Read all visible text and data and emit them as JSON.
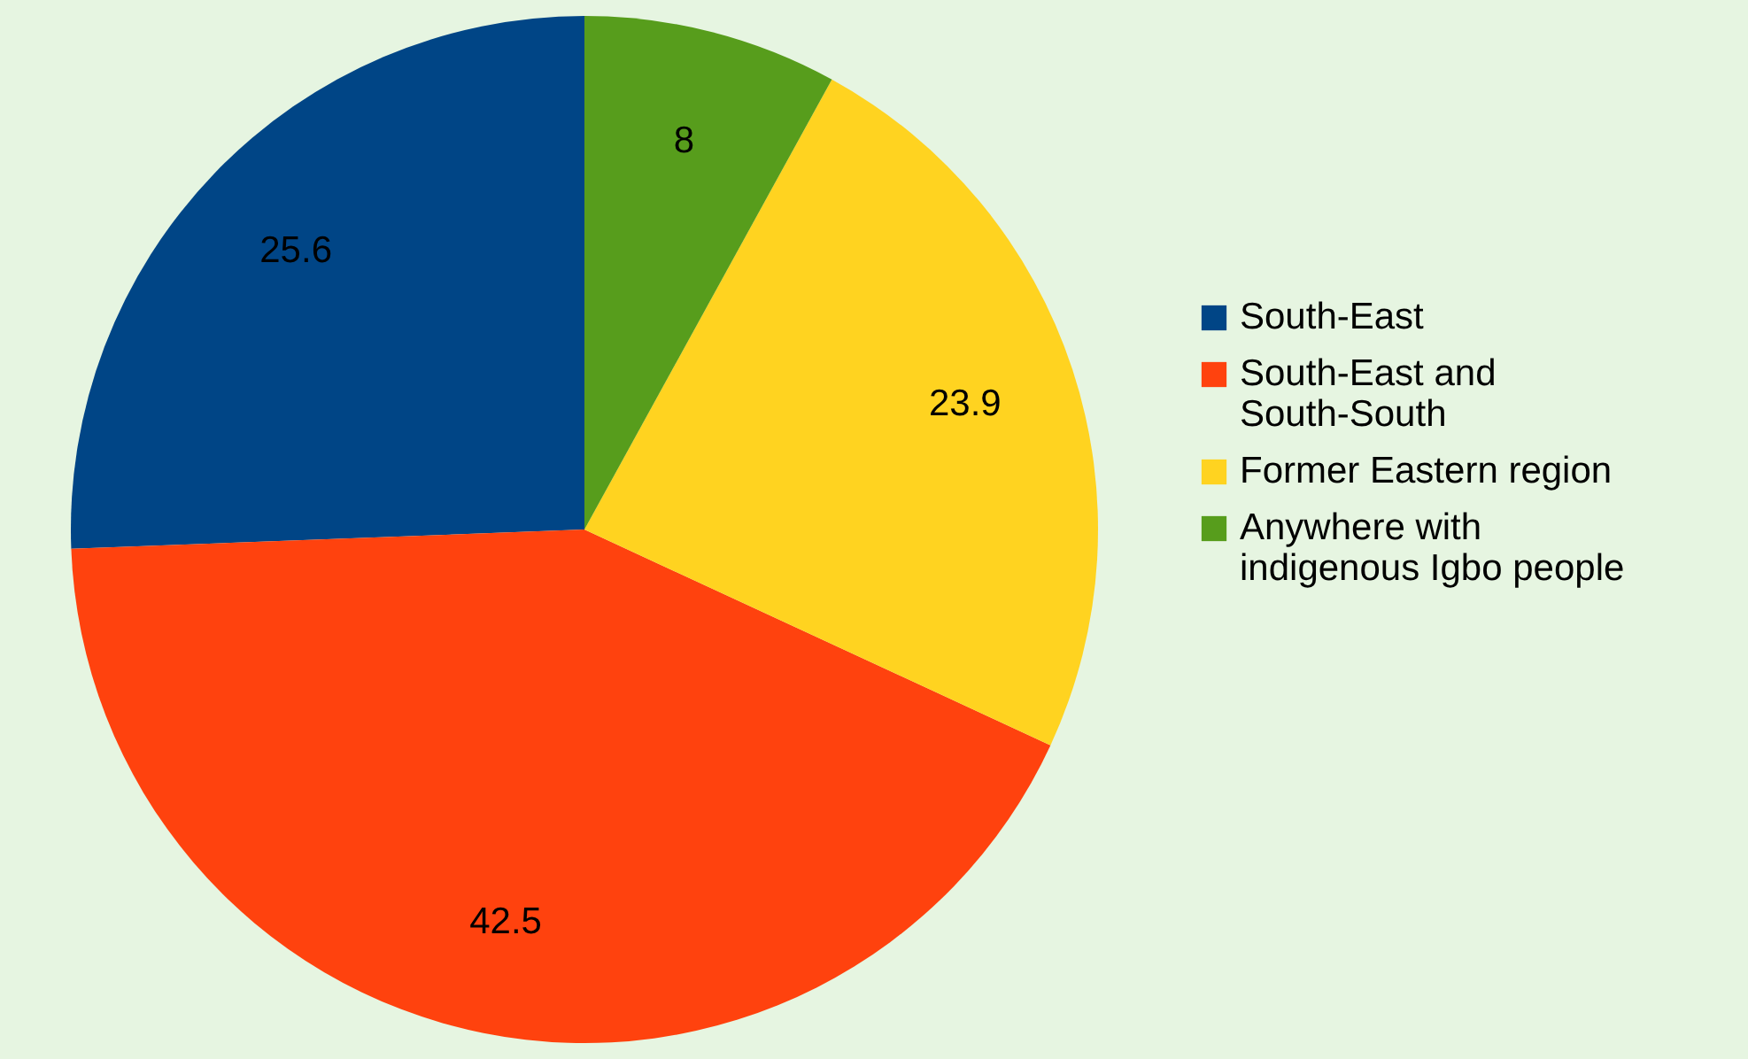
{
  "chart_data": {
    "type": "pie",
    "categories": [
      "South-East",
      "South-East and South-South",
      "Former Eastern region",
      "Anywhere with indigenous Igbo people"
    ],
    "values": [
      25.6,
      42.5,
      23.9,
      8
    ],
    "colors": [
      "#004586",
      "#ff420e",
      "#ffd320",
      "#579d1c"
    ],
    "data_labels": true,
    "legend": "right"
  }
}
